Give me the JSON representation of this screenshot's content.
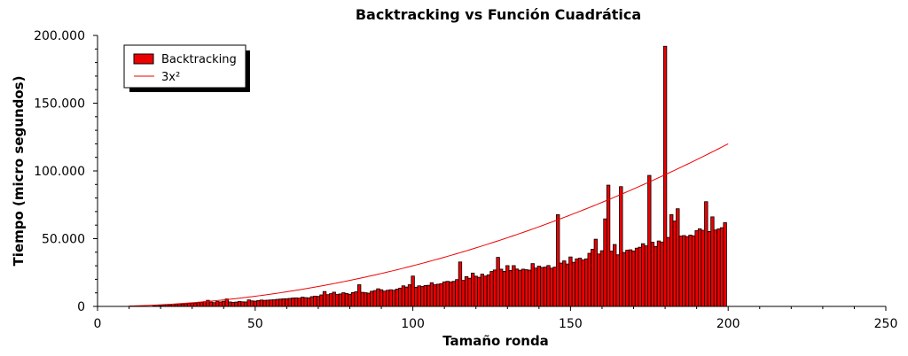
{
  "chart_data": {
    "type": "bar",
    "title": "Backtracking vs Función Cuadrática",
    "xlabel": "Tamaño ronda",
    "ylabel": "Tiempo (micro segundos)",
    "xlim": [
      0,
      250
    ],
    "ylim": [
      0,
      200000
    ],
    "xticks": [
      0,
      50,
      100,
      150,
      200,
      250
    ],
    "yticks": [
      0,
      50000,
      100000,
      150000,
      200000
    ],
    "xtick_labels": [
      "0",
      "50",
      "100",
      "150",
      "200",
      "250"
    ],
    "ytick_labels": [
      "0",
      "50.000",
      "100.000",
      "150.000",
      "200.000"
    ],
    "grid": false,
    "legend_position": "top-left",
    "series": [
      {
        "name": "Backtracking",
        "type": "bar",
        "color": "#ee0000",
        "x_start": 10,
        "x_step": 1,
        "values": [
          0,
          0,
          0,
          0,
          0,
          0,
          0,
          0,
          500,
          800,
          600,
          900,
          1200,
          1000,
          1500,
          1400,
          1800,
          1600,
          2000,
          2200,
          2400,
          2500,
          2800,
          3000,
          3500,
          4500,
          3200,
          2800,
          3600,
          3300,
          3800,
          5500,
          3300,
          3000,
          3200,
          3600,
          3400,
          3300,
          4800,
          4100,
          3900,
          4300,
          4700,
          4500,
          4600,
          4800,
          4900,
          5200,
          5400,
          5600,
          5700,
          5900,
          6200,
          6300,
          6100,
          6800,
          6500,
          6300,
          7200,
          7600,
          7400,
          8500,
          11000,
          8700,
          9400,
          10500,
          8800,
          9200,
          10100,
          9500,
          9000,
          10200,
          10800,
          16000,
          10400,
          10100,
          9800,
          11200,
          11700,
          13000,
          12300,
          11300,
          11900,
          12300,
          11900,
          12800,
          13500,
          15200,
          14300,
          16000,
          22400,
          14200,
          15200,
          14700,
          15400,
          15600,
          17500,
          16000,
          16400,
          16800,
          18100,
          18500,
          18100,
          18500,
          19800,
          32800,
          19200,
          22000,
          20800,
          24600,
          22300,
          21500,
          23800,
          22400,
          23300,
          25800,
          26900,
          36200,
          27500,
          25900,
          30100,
          26500,
          30100,
          27600,
          26700,
          27500,
          27100,
          26800,
          31600,
          28300,
          29700,
          28800,
          29000,
          30200,
          28200,
          29000,
          67700,
          32000,
          33600,
          31300,
          36500,
          32600,
          35100,
          35600,
          34300,
          35100,
          39200,
          42200,
          49600,
          38700,
          41100,
          64600,
          89500,
          40800,
          45700,
          38100,
          88400,
          39800,
          41500,
          41800,
          40900,
          43000,
          43700,
          46300,
          44700,
          96700,
          47400,
          44300,
          48300,
          47500,
          192000,
          50900,
          67800,
          63000,
          72100,
          51900,
          52300,
          51500,
          52600,
          52100,
          55900,
          57300,
          56200,
          77300,
          55300,
          66100,
          56400,
          57200,
          58100,
          61800
        ],
        "value_labels": []
      },
      {
        "name": "3x²",
        "type": "line",
        "color": "#ee0000",
        "function": "3*x^2",
        "x_range": [
          10,
          200
        ]
      }
    ]
  }
}
